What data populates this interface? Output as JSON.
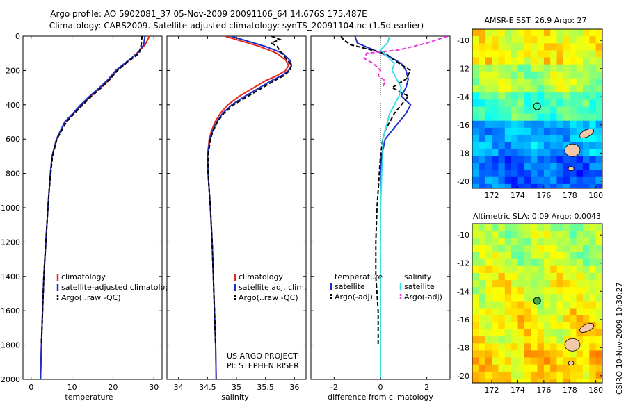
{
  "header": {
    "line1": "Argo profile: AO 5902081_37 05-Nov-2009 20091106_64 14.676S 175.487E",
    "line2": "Climatology: CARS2009. Satellite-adjusted climatology: synTS_20091104.nc (1.5d earlier)"
  },
  "footer": {
    "project": "US ARGO PROJECT",
    "pi": "PI: STEPHEN RISER",
    "stamp": "CSIRO 10-Nov-2009 10:30:27"
  },
  "colors": {
    "climatology": "#e8281e",
    "satellite": "#1c2fc8",
    "argo": "#000000",
    "sal_satellite": "#38e0e6",
    "sal_argo": "#e83cd6"
  },
  "chart_data": [
    {
      "type": "line",
      "panel": "temperature",
      "xlabel": "temperature",
      "xlim": [
        -2,
        32
      ],
      "ylim": [
        2000,
        0
      ],
      "xticks": [
        "0",
        "10",
        "20",
        "30"
      ],
      "yticks": [
        "0",
        "200",
        "400",
        "600",
        "800",
        "1000",
        "1200",
        "1400",
        "1600",
        "1800",
        "2000"
      ],
      "legend_position": "lower-right",
      "series": [
        {
          "name": "climatology",
          "style": "solid",
          "color": "#e8281e",
          "depth": [
            0,
            20,
            50,
            100,
            150,
            200,
            250,
            300,
            350,
            400,
            450,
            500,
            600,
            700,
            800,
            900,
            1000,
            1200,
            1400,
            1600,
            1800,
            2000
          ],
          "values": [
            28.9,
            28.5,
            27.9,
            25.8,
            23.5,
            21.0,
            19.2,
            17.0,
            14.6,
            12.4,
            10.4,
            8.3,
            6.2,
            5.1,
            4.7,
            4.4,
            4.1,
            3.6,
            3.1,
            2.8,
            2.5,
            2.3
          ]
        },
        {
          "name": "satellite-adjusted climatology",
          "style": "solid",
          "color": "#1c2fc8",
          "depth": [
            0,
            20,
            50,
            100,
            150,
            200,
            250,
            300,
            350,
            400,
            450,
            500,
            600,
            700,
            800,
            900,
            1000,
            1200,
            1400,
            1600,
            1800,
            2000
          ],
          "values": [
            27.8,
            27.7,
            27.5,
            26.0,
            23.3,
            20.7,
            18.9,
            16.7,
            14.3,
            12.1,
            10.2,
            8.2,
            6.2,
            5.1,
            4.7,
            4.4,
            4.1,
            3.6,
            3.1,
            2.8,
            2.5,
            2.3
          ]
        },
        {
          "name": "Argo(..raw -QC)",
          "style": "dashed",
          "color": "#000000",
          "depth": [
            0,
            20,
            50,
            100,
            150,
            200,
            250,
            300,
            350,
            400,
            450,
            500,
            600,
            700,
            800,
            900,
            1000,
            1200,
            1400,
            1600,
            1800
          ],
          "values": [
            27.1,
            27.0,
            26.9,
            26.4,
            23.6,
            21.1,
            19.3,
            17.2,
            14.8,
            12.6,
            10.6,
            8.6,
            6.3,
            5.2,
            4.8,
            4.4,
            4.1,
            3.6,
            3.1,
            2.8,
            2.5
          ]
        }
      ]
    },
    {
      "type": "line",
      "panel": "salinity",
      "xlabel": "salinity",
      "xlim": [
        33.8,
        36.2
      ],
      "ylim": [
        2000,
        0
      ],
      "xticks": [
        "34",
        "34.5",
        "35",
        "35.5",
        "36"
      ],
      "legend_position": "lower-right",
      "series": [
        {
          "name": "climatology",
          "style": "solid",
          "color": "#e8281e",
          "depth": [
            0,
            30,
            60,
            100,
            140,
            170,
            200,
            230,
            260,
            300,
            350,
            400,
            450,
            500,
            550,
            600,
            700,
            800,
            900,
            1000,
            1200,
            1400,
            1600,
            1800,
            2000
          ],
          "values": [
            34.8,
            35.1,
            35.4,
            35.7,
            35.85,
            35.9,
            35.85,
            35.7,
            35.5,
            35.3,
            35.05,
            34.85,
            34.72,
            34.63,
            34.57,
            34.53,
            34.5,
            34.51,
            34.53,
            34.55,
            34.58,
            34.6,
            34.62,
            34.64,
            34.65
          ]
        },
        {
          "name": "satellite adj. clim.",
          "style": "solid",
          "color": "#1c2fc8",
          "depth": [
            0,
            30,
            60,
            100,
            140,
            170,
            200,
            230,
            260,
            300,
            350,
            400,
            450,
            500,
            550,
            600,
            700,
            800,
            900,
            1000,
            1200,
            1400,
            1600,
            1800,
            2000
          ],
          "values": [
            34.9,
            35.2,
            35.5,
            35.8,
            35.92,
            35.95,
            35.9,
            35.78,
            35.6,
            35.4,
            35.15,
            34.92,
            34.76,
            34.66,
            34.59,
            34.54,
            34.5,
            34.51,
            34.53,
            34.55,
            34.58,
            34.6,
            34.62,
            34.64,
            34.65
          ]
        },
        {
          "name": "Argo(..raw -QC)",
          "style": "dashed",
          "color": "#000000",
          "depth": [
            0,
            20,
            40,
            60,
            100,
            140,
            170,
            200,
            230,
            260,
            300,
            350,
            400,
            450,
            500,
            550,
            600,
            700,
            800,
            900,
            1000,
            1200,
            1400,
            1600,
            1800
          ],
          "values": [
            35.6,
            35.75,
            35.6,
            35.7,
            35.78,
            35.88,
            35.95,
            35.92,
            35.82,
            35.65,
            35.45,
            35.2,
            34.95,
            34.78,
            34.67,
            34.6,
            34.55,
            34.51,
            34.51,
            34.53,
            34.55,
            34.58,
            34.6,
            34.62,
            34.64
          ]
        }
      ]
    },
    {
      "type": "line",
      "panel": "difference",
      "xlabel": "difference from climatology",
      "xlim": [
        -3,
        3
      ],
      "ylim": [
        2000,
        0
      ],
      "xticks": [
        "-2",
        "0",
        "2"
      ],
      "legend_position": "lower",
      "legend_headers": [
        "temperature",
        "salinity"
      ],
      "series": [
        {
          "name": "satellite",
          "group": "temperature",
          "style": "solid",
          "color": "#1c2fc8",
          "depth": [
            0,
            40,
            80,
            120,
            160,
            200,
            250,
            300,
            350,
            400,
            450,
            500,
            550,
            600,
            700,
            800,
            900,
            1000,
            1200,
            1400,
            1600,
            1800,
            2000
          ],
          "values": [
            -1.1,
            -1.0,
            -0.3,
            0.4,
            0.9,
            1.1,
            1.2,
            1.1,
            0.9,
            1.3,
            1.1,
            0.8,
            0.5,
            0.2,
            0.05,
            0.02,
            0.01,
            0,
            0,
            0,
            0,
            0,
            0
          ]
        },
        {
          "name": "Argo(-adj)",
          "group": "temperature",
          "style": "dashed",
          "color": "#000000",
          "depth": [
            0,
            20,
            50,
            80,
            100,
            150,
            200,
            250,
            300,
            350,
            400,
            450,
            500,
            550,
            600,
            700,
            800,
            900,
            1000,
            1200,
            1400,
            1600,
            1800
          ],
          "values": [
            -1.7,
            -1.6,
            -1.3,
            -0.4,
            0.2,
            0.7,
            1.3,
            1.1,
            0.5,
            1.2,
            0.9,
            0.6,
            0.4,
            0.2,
            0.1,
            0.0,
            -0.05,
            -0.1,
            -0.15,
            -0.2,
            -0.2,
            -0.1,
            -0.1
          ]
        },
        {
          "name": "satellite",
          "group": "salinity",
          "style": "solid",
          "color": "#38e0e6",
          "depth": [
            0,
            40,
            80,
            120,
            160,
            200,
            250,
            300,
            350,
            400,
            450,
            500,
            550,
            600,
            700,
            800,
            900,
            1000,
            1200,
            1400,
            1600,
            1800,
            2000
          ],
          "values": [
            0.4,
            0.3,
            0.0,
            0.3,
            0.6,
            0.5,
            0.7,
            0.9,
            0.8,
            0.6,
            0.4,
            0.3,
            0.2,
            0.1,
            0.1,
            0.05,
            0.03,
            0,
            0,
            0,
            0,
            0,
            0
          ]
        },
        {
          "name": "Argo(-adj)",
          "group": "salinity",
          "style": "dashed",
          "color": "#e83cd6",
          "depth": [
            0,
            40,
            80,
            100,
            130,
            160,
            200,
            230,
            260,
            300
          ],
          "values": [
            2.9,
            2.0,
            0.8,
            -0.6,
            -0.7,
            -0.3,
            0.0,
            -0.1,
            0.2,
            0.1
          ]
        }
      ]
    },
    {
      "type": "heatmap",
      "panel": "sst-map",
      "title": "AMSR-E SST: 26.9 Argo: 27",
      "xlim": [
        170.5,
        180.5
      ],
      "ylim": [
        -20.5,
        -9.2
      ],
      "xticks": [
        "172",
        "174",
        "176",
        "178",
        "180"
      ],
      "yticks": [
        "-10",
        "-12",
        "-14",
        "-16",
        "-18",
        "-20"
      ],
      "marker": {
        "lon": 175.487,
        "lat": -14.676
      },
      "value_bands": [
        {
          "lat_top": -9.2,
          "lat_bottom": -11.5,
          "level": 0.62
        },
        {
          "lat_top": -11.5,
          "lat_bottom": -13.5,
          "level": 0.55
        },
        {
          "lat_top": -13.5,
          "lat_bottom": -15.5,
          "level": 0.45
        },
        {
          "lat_top": -15.5,
          "lat_bottom": -18.0,
          "level": 0.3
        },
        {
          "lat_top": -18.0,
          "lat_bottom": -20.5,
          "level": 0.22
        }
      ]
    },
    {
      "type": "heatmap",
      "panel": "sla-map",
      "title": "Altimetric SLA: 0.09 Argo: 0.0043",
      "xlim": [
        170.5,
        180.5
      ],
      "ylim": [
        -20.5,
        -9.2
      ],
      "xticks": [
        "172",
        "174",
        "176",
        "178",
        "180"
      ],
      "yticks": [
        "-10",
        "-12",
        "-14",
        "-16",
        "-18",
        "-20"
      ],
      "marker": {
        "lon": 175.487,
        "lat": -14.676
      },
      "value_bands": [
        {
          "lat_top": -9.2,
          "lat_bottom": -12.0,
          "level": 0.55
        },
        {
          "lat_top": -12.0,
          "lat_bottom": -15.0,
          "level": 0.6
        },
        {
          "lat_top": -15.0,
          "lat_bottom": -18.0,
          "level": 0.63
        },
        {
          "lat_top": -18.0,
          "lat_bottom": -20.5,
          "level": 0.66
        }
      ]
    }
  ]
}
